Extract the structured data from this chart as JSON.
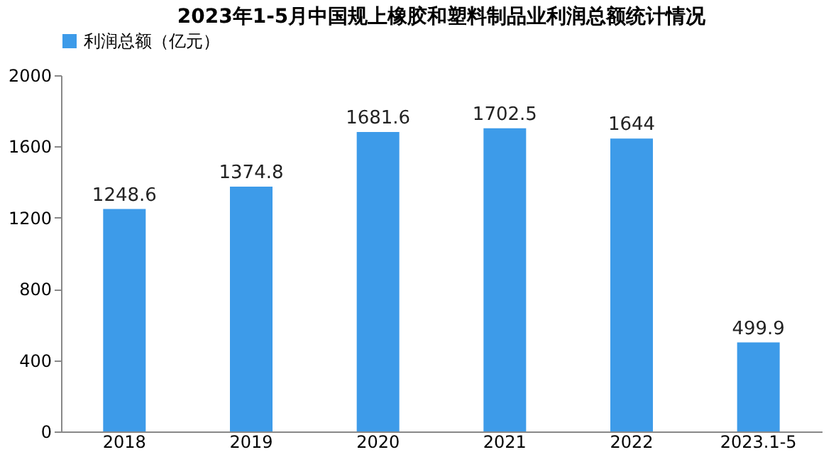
{
  "chart_data": {
    "type": "bar",
    "title": "2023年1-5月中国规上橡胶和塑料制品业利润总额统计情况",
    "categories": [
      "2018",
      "2019",
      "2020",
      "2021",
      "2022",
      "2023.1-5"
    ],
    "series": [
      {
        "name": "利润总额（亿元）",
        "color": "#3d9be9",
        "values": [
          1248.6,
          1374.8,
          1681.6,
          1702.5,
          1644,
          499.9
        ]
      }
    ],
    "ylim": [
      0,
      2000
    ],
    "yticks": [
      0,
      400,
      800,
      1200,
      1600,
      2000
    ],
    "grid": false,
    "legend": "top",
    "data_labels": true
  }
}
